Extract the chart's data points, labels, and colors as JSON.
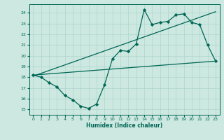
{
  "xlabel": "Humidex (Indice chaleur)",
  "xlim": [
    -0.5,
    23.5
  ],
  "ylim": [
    14.5,
    24.8
  ],
  "yticks": [
    15,
    16,
    17,
    18,
    19,
    20,
    21,
    22,
    23,
    24
  ],
  "xticks": [
    0,
    1,
    2,
    3,
    4,
    5,
    6,
    7,
    8,
    9,
    10,
    11,
    12,
    13,
    14,
    15,
    16,
    17,
    18,
    19,
    20,
    21,
    22,
    23
  ],
  "bg_color": "#cce8e0",
  "grid_color": "#aed4cc",
  "line_color": "#006655",
  "main_x": [
    0,
    1,
    2,
    3,
    4,
    5,
    6,
    7,
    8,
    9,
    10,
    11,
    12,
    13,
    14,
    15,
    16,
    17,
    18,
    19,
    20,
    21,
    22,
    23
  ],
  "main_y": [
    18.2,
    18.0,
    17.5,
    17.1,
    16.3,
    15.9,
    15.3,
    15.1,
    15.5,
    17.3,
    19.7,
    20.5,
    20.4,
    21.1,
    24.3,
    22.9,
    23.1,
    23.2,
    23.8,
    23.9,
    23.1,
    22.9,
    21.0,
    19.5
  ],
  "trend1_x": [
    0,
    23
  ],
  "trend1_y": [
    18.2,
    19.5
  ],
  "trend2_x": [
    0,
    23
  ],
  "trend2_y": [
    18.1,
    24.1
  ]
}
